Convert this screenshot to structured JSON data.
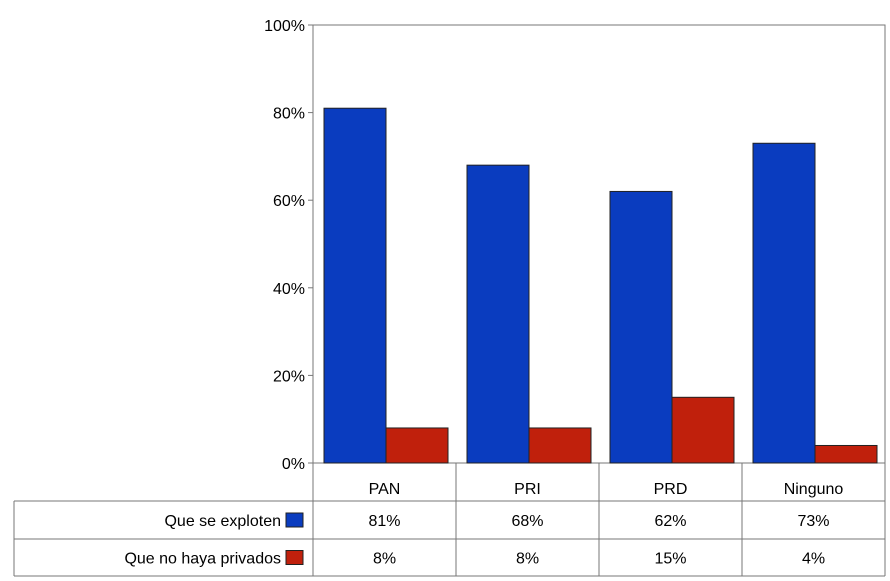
{
  "chart_data": {
    "type": "bar",
    "categories": [
      "PAN",
      "PRI",
      "PRD",
      "Ninguno"
    ],
    "series": [
      {
        "name": "Que se exploten",
        "values": [
          81,
          68,
          62,
          73
        ],
        "labels": [
          "81%",
          "68%",
          "62%",
          "73%"
        ],
        "color": "#0a3cbf"
      },
      {
        "name": "Que no haya privados",
        "values": [
          8,
          8,
          15,
          4
        ],
        "labels": [
          "8%",
          "8%",
          "15%",
          "4%"
        ],
        "color": "#c0200c"
      }
    ],
    "ylim": [
      0,
      100
    ],
    "yticks": [
      0,
      20,
      40,
      60,
      80,
      100
    ],
    "ytick_labels": [
      "0%",
      "20%",
      "40%",
      "60%",
      "80%",
      "100%"
    ],
    "grid": false,
    "legend": "data-table"
  }
}
